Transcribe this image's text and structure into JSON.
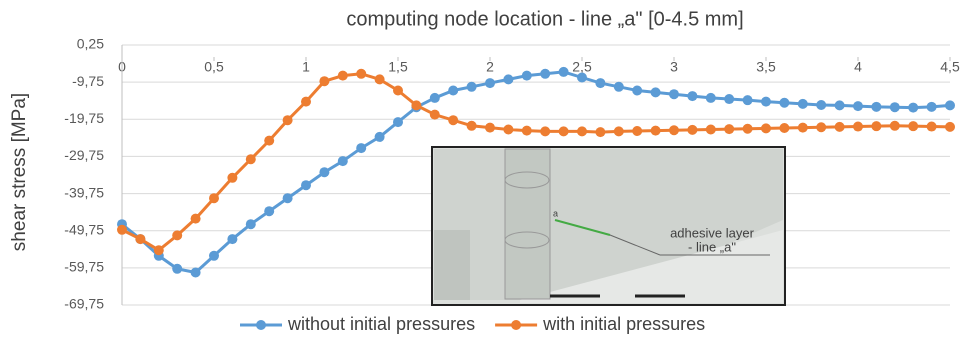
{
  "chart_data": {
    "type": "line",
    "title": "computing node location - line „a\" [0-4.5 mm]",
    "y_label": "shear stress [MPa]",
    "x": [
      0,
      0.1,
      0.2,
      0.3,
      0.4,
      0.5,
      0.6,
      0.7,
      0.8,
      0.9,
      1.0,
      1.1,
      1.2,
      1.3,
      1.4,
      1.5,
      1.6,
      1.7,
      1.8,
      1.9,
      2.0,
      2.1,
      2.2,
      2.3,
      2.4,
      2.5,
      2.6,
      2.7,
      2.8,
      2.9,
      3.0,
      3.1,
      3.2,
      3.3,
      3.4,
      3.5,
      3.6,
      3.7,
      3.8,
      3.9,
      4.0,
      4.1,
      4.2,
      4.3,
      4.4,
      4.5
    ],
    "series": [
      {
        "name": "without initial pressures",
        "color": "#5b9bd5",
        "values": [
          -48,
          -52,
          -56.5,
          -60,
          -61,
          -56.5,
          -52,
          -48,
          -44.5,
          -41,
          -37.5,
          -34,
          -31,
          -27.5,
          -24.5,
          -20.5,
          -16.5,
          -14,
          -12,
          -11,
          -10,
          -9,
          -8,
          -7.5,
          -7,
          -8.5,
          -10,
          -11,
          -12,
          -12.5,
          -13,
          -13.5,
          -14,
          -14.3,
          -14.6,
          -15,
          -15.3,
          -15.6,
          -15.9,
          -16,
          -16.2,
          -16.4,
          -16.5,
          -16.6,
          -16.4,
          -16
        ]
      },
      {
        "name": "with initial pressures",
        "color": "#ed7d31",
        "values": [
          -49.5,
          -52,
          -55,
          -51,
          -46.5,
          -41,
          -35.5,
          -30.5,
          -25.5,
          -20,
          -15,
          -9.5,
          -8,
          -7.5,
          -9,
          -12,
          -16,
          -18.5,
          -20,
          -21.5,
          -22,
          -22.5,
          -22.8,
          -23,
          -23,
          -23,
          -23.2,
          -23,
          -22.9,
          -22.8,
          -22.7,
          -22.6,
          -22.5,
          -22.4,
          -22.3,
          -22.2,
          -22.1,
          -22,
          -21.9,
          -21.8,
          -21.7,
          -21.6,
          -21.5,
          -21.6,
          -21.7,
          -21.8
        ]
      }
    ],
    "xlim": [
      0,
      4.5
    ],
    "xticks": [
      0,
      {
        "value": 0.5,
        "label": "0,5"
      },
      1,
      {
        "value": 1.5,
        "label": "1,5"
      },
      2,
      {
        "value": 2.5,
        "label": "2,5"
      },
      3,
      {
        "value": 3.5,
        "label": "3,5"
      },
      4,
      {
        "value": 4.5,
        "label": "4,5"
      }
    ],
    "ylim": [
      -69.75,
      0.25
    ],
    "yticks": [
      {
        "value": 0.25,
        "label": "0,25"
      },
      {
        "value": -9.75,
        "label": "-9,75"
      },
      {
        "value": -19.75,
        "label": "-19,75"
      },
      {
        "value": -29.75,
        "label": "-29,75"
      },
      {
        "value": -39.75,
        "label": "-39,75"
      },
      {
        "value": -49.75,
        "label": "-49,75"
      },
      {
        "value": -59.75,
        "label": "-59,75"
      },
      {
        "value": -69.75,
        "label": "-69,75"
      }
    ],
    "grid": true,
    "legend": "bottom",
    "inset": {
      "marker": "a",
      "label_lines": [
        "adhesive layer",
        "- line „a\""
      ]
    }
  }
}
